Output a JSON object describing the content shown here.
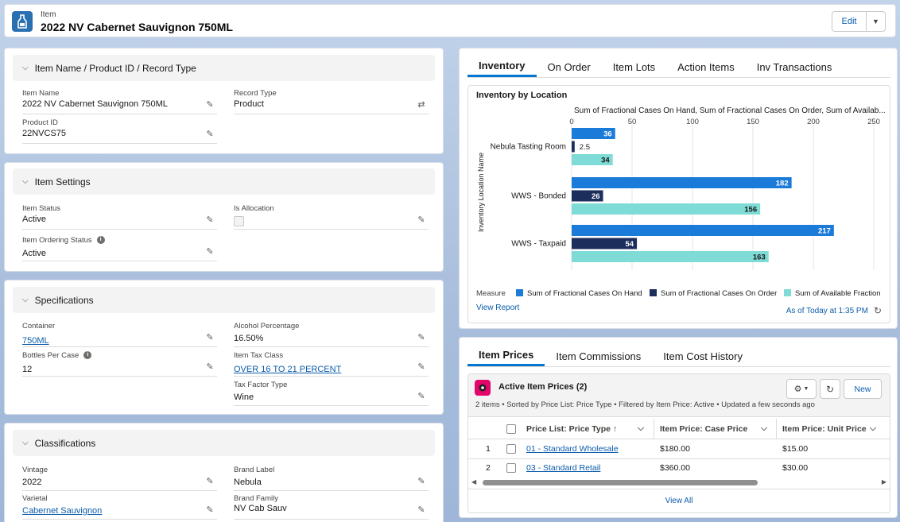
{
  "header": {
    "object_label": "Item",
    "title": "2022 NV Cabernet Sauvignon 750ML",
    "edit_label": "Edit"
  },
  "sections": {
    "name": {
      "title": "Item Name / Product ID / Record Type",
      "item_name_label": "Item Name",
      "item_name": "2022 NV Cabernet Sauvignon 750ML",
      "record_type_label": "Record Type",
      "record_type": "Product",
      "product_id_label": "Product ID",
      "product_id": "22NVCS75"
    },
    "settings": {
      "title": "Item Settings",
      "status_label": "Item Status",
      "status": "Active",
      "allocation_label": "Is Allocation",
      "ordering_label": "Item Ordering Status",
      "ordering": "Active"
    },
    "specs": {
      "title": "Specifications",
      "container_label": "Container",
      "container": "750ML",
      "alcohol_label": "Alcohol Percentage",
      "alcohol": "16.50%",
      "bottles_label": "Bottles Per Case",
      "bottles": "12",
      "tax_class_label": "Item Tax Class",
      "tax_class": "OVER 16 TO 21 PERCENT",
      "tax_factor_label": "Tax Factor Type",
      "tax_factor": "Wine"
    },
    "classifications": {
      "title": "Classifications",
      "vintage_label": "Vintage",
      "vintage": "2022",
      "brand_label_label": "Brand Label",
      "brand_label": "Nebula",
      "varietal_label": "Varietal",
      "varietal": "Cabernet Sauvignon",
      "brand_family_label": "Brand Family",
      "brand_family": "NV Cab Sauv"
    }
  },
  "inventory_tabs": [
    "Inventory",
    "On Order",
    "Item Lots",
    "Action Items",
    "Inv Transactions"
  ],
  "chart_panel": {
    "title": "Inventory by Location",
    "view_report": "View Report",
    "as_of": "As of Today at 1:35 PM",
    "measure_label": "Measure"
  },
  "chart_data": {
    "type": "bar",
    "orientation": "horizontal",
    "title": "Sum of Fractional Cases On Hand, Sum of Fractional Cases On Order, Sum of Availab...",
    "ylabel": "Inventory Location Name",
    "categories": [
      "Nebula Tasting Room",
      "WWS - Bonded",
      "WWS - Taxpaid"
    ],
    "xlim": [
      0,
      250
    ],
    "xticks": [
      "0",
      "50",
      "100",
      "150",
      "200",
      "250"
    ],
    "series": [
      {
        "name": "Sum of Fractional Cases On Hand",
        "color": "#1b7bd8",
        "values": [
          36,
          182,
          217
        ],
        "labels": [
          "36",
          "182",
          "217"
        ]
      },
      {
        "name": "Sum of Fractional Cases On Order",
        "color": "#1c2e5c",
        "values": [
          2.5,
          26,
          54
        ],
        "labels": [
          "2.5",
          "26",
          "54"
        ]
      },
      {
        "name": "Sum of Available Fraction",
        "color": "#7fdbd6",
        "values": [
          34,
          156,
          163
        ],
        "labels": [
          "34",
          "156",
          "163"
        ]
      }
    ]
  },
  "price_tabs": [
    "Item Prices",
    "Item Commissions",
    "Item Cost History"
  ],
  "prices": {
    "list_title": "Active Item Prices (2)",
    "meta": "2 items • Sorted by Price List: Price Type • Filtered by Item Price: Active • Updated a few seconds ago",
    "new_label": "New",
    "columns": [
      "Price List: Price Type ↑",
      "Item Price: Case Price",
      "Item Price: Unit Price"
    ],
    "rows": [
      {
        "num": "1",
        "list": "01 - Standard Wholesale",
        "case": "$180.00",
        "unit": "$15.00"
      },
      {
        "num": "2",
        "list": "03 - Standard Retail",
        "case": "$360.00",
        "unit": "$30.00"
      }
    ],
    "view_all": "View All"
  }
}
